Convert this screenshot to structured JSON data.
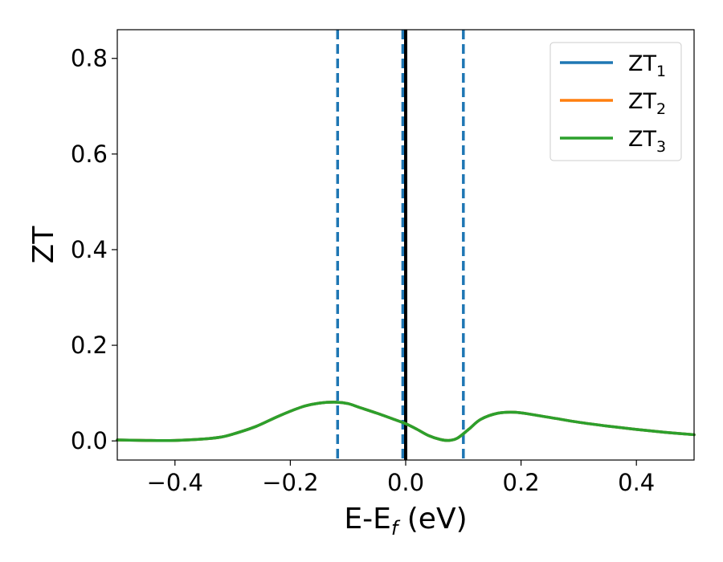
{
  "chart_data": {
    "type": "line",
    "xlabel": "E-E",
    "xlabel_sub": "f",
    "xlabel_unit": " (eV)",
    "ylabel": "ZT",
    "xlim": [
      -0.5,
      0.5
    ],
    "ylim": [
      -0.04,
      0.86
    ],
    "xticks": [
      -0.4,
      -0.2,
      0.0,
      0.2,
      0.4
    ],
    "xtick_labels": [
      "−0.4",
      "−0.2",
      "0.0",
      "0.2",
      "0.4"
    ],
    "yticks": [
      0.0,
      0.2,
      0.4,
      0.6,
      0.8
    ],
    "ytick_labels": [
      "0.0",
      "0.2",
      "0.4",
      "0.6",
      "0.8"
    ],
    "legend_position": "top-right",
    "vlines": [
      {
        "x": -0.118,
        "style": "dashed",
        "color": "#1f77b4"
      },
      {
        "x": -0.005,
        "style": "dashed",
        "color": "#1f77b4"
      },
      {
        "x": 0.1,
        "style": "dashed",
        "color": "#1f77b4"
      },
      {
        "x": 0.0,
        "style": "solid",
        "color": "#000000"
      }
    ],
    "x": [
      -0.5,
      -0.45,
      -0.4,
      -0.35,
      -0.32,
      -0.3,
      -0.26,
      -0.22,
      -0.18,
      -0.15,
      -0.12,
      -0.1,
      -0.08,
      -0.05,
      -0.02,
      0.0,
      0.02,
      0.04,
      0.06,
      0.075,
      0.09,
      0.11,
      0.13,
      0.16,
      0.19,
      0.22,
      0.26,
      0.3,
      0.35,
      0.4,
      0.45,
      0.5
    ],
    "series": [
      {
        "name": "ZT",
        "name_sub": "1",
        "color": "#1f77b4",
        "values": [
          0.002,
          0.001,
          0.001,
          0.004,
          0.008,
          0.014,
          0.03,
          0.052,
          0.071,
          0.079,
          0.081,
          0.078,
          0.07,
          0.058,
          0.045,
          0.036,
          0.024,
          0.011,
          0.003,
          0.001,
          0.006,
          0.025,
          0.045,
          0.058,
          0.06,
          0.055,
          0.047,
          0.039,
          0.031,
          0.024,
          0.018,
          0.013
        ]
      },
      {
        "name": "ZT",
        "name_sub": "2",
        "color": "#ff7f0e",
        "values": [
          0.002,
          0.001,
          0.001,
          0.004,
          0.008,
          0.014,
          0.03,
          0.052,
          0.071,
          0.079,
          0.081,
          0.078,
          0.07,
          0.058,
          0.045,
          0.036,
          0.024,
          0.011,
          0.003,
          0.001,
          0.006,
          0.025,
          0.045,
          0.058,
          0.06,
          0.055,
          0.047,
          0.039,
          0.031,
          0.024,
          0.018,
          0.013
        ]
      },
      {
        "name": "ZT",
        "name_sub": "3",
        "color": "#2ca02c",
        "values": [
          0.002,
          0.001,
          0.001,
          0.004,
          0.008,
          0.014,
          0.03,
          0.052,
          0.071,
          0.079,
          0.081,
          0.078,
          0.07,
          0.058,
          0.045,
          0.036,
          0.024,
          0.011,
          0.003,
          0.001,
          0.006,
          0.025,
          0.045,
          0.058,
          0.06,
          0.055,
          0.047,
          0.039,
          0.031,
          0.024,
          0.018,
          0.013
        ]
      }
    ]
  }
}
